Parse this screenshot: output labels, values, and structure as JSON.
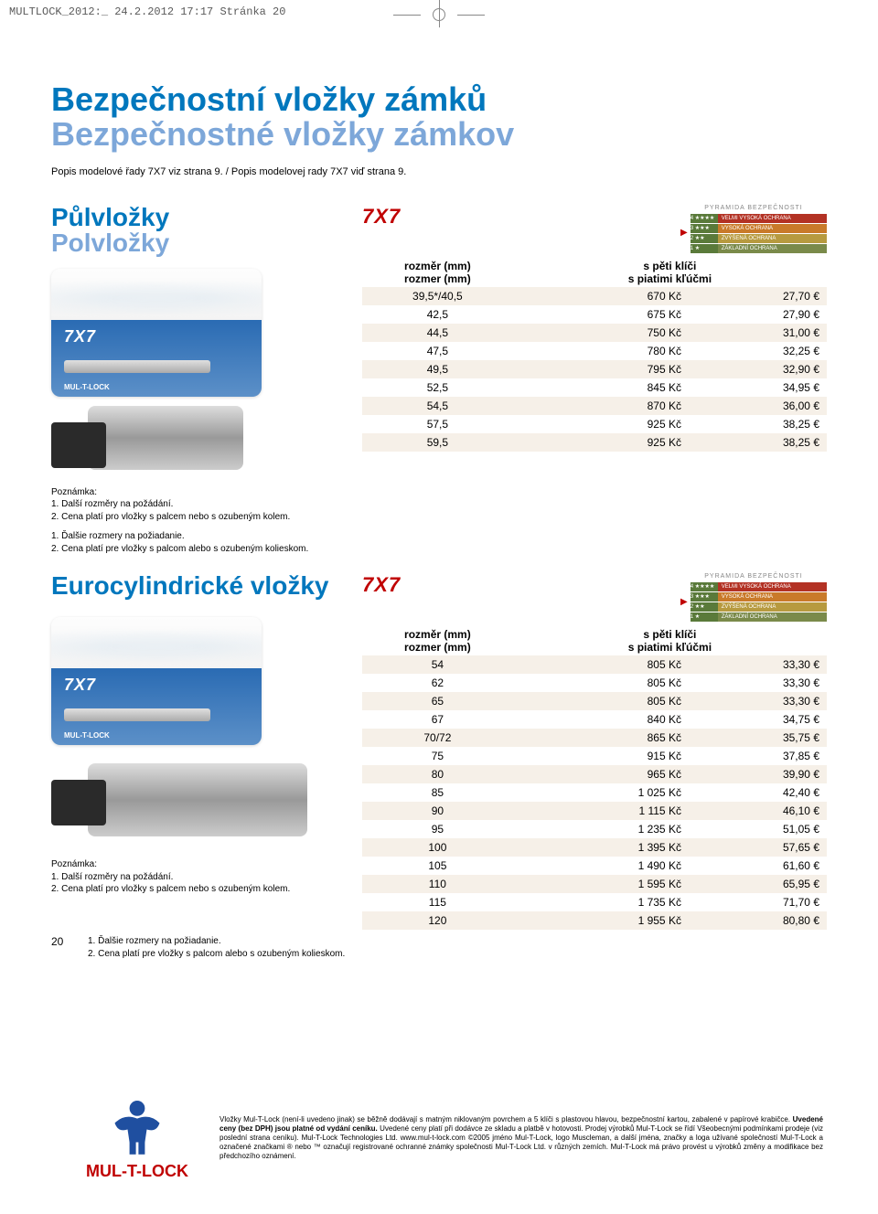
{
  "print_header": "MULTLOCK_2012:_  24.2.2012  17:17  Stránka 20",
  "title_cz": "Bezpečnostní vložky zámků",
  "title_sk": "Bezpečnostné vložky zámkov",
  "subtitle": "Popis modelové řady 7X7 viz strana 9. / Popis modelovej rady 7X7 viď strana 9.",
  "brand": "7X7",
  "card_brand_small": "MUL-T-LOCK",
  "pyramid": {
    "title": "PYRAMIDA BEZPEČNOSTI",
    "rows": [
      {
        "stars": "4 ★★★★",
        "label": "VELMI VYSOKÁ OCHRANA",
        "bg": "#b33224"
      },
      {
        "stars": "3 ★★★",
        "label": "VYSOKÁ OCHRANA",
        "bg": "#c97a2a"
      },
      {
        "stars": "2 ★★",
        "label": "ZVÝŠENÁ OCHRANA",
        "bg": "#b79a3f"
      },
      {
        "stars": "1 ★",
        "label": "ZÁKLADNÍ OCHRANA",
        "bg": "#7a8a4a"
      }
    ]
  },
  "table_header_col1a": "rozměr (mm)",
  "table_header_col1b": "rozmer (mm)",
  "table_header_col2a": "s pěti klíči",
  "table_header_col2b": "s piatimi kľúčmi",
  "section1": {
    "title_cz": "Půlvložky",
    "title_sk": "Polvložky",
    "rows": [
      {
        "size": "39,5*/40,5",
        "kc": "670 Kč",
        "eur": "27,70 €"
      },
      {
        "size": "42,5",
        "kc": "675 Kč",
        "eur": "27,90 €"
      },
      {
        "size": "44,5",
        "kc": "750 Kč",
        "eur": "31,00 €"
      },
      {
        "size": "47,5",
        "kc": "780 Kč",
        "eur": "32,25 €"
      },
      {
        "size": "49,5",
        "kc": "795 Kč",
        "eur": "32,90 €"
      },
      {
        "size": "52,5",
        "kc": "845 Kč",
        "eur": "34,95 €"
      },
      {
        "size": "54,5",
        "kc": "870 Kč",
        "eur": "36,00 €"
      },
      {
        "size": "57,5",
        "kc": "925 Kč",
        "eur": "38,25 €"
      },
      {
        "size": "59,5",
        "kc": "925 Kč",
        "eur": "38,25 €"
      }
    ]
  },
  "notes_a": {
    "heading": "Poznámka:",
    "l1": "1. Další rozměry na požádání.",
    "l2": "2. Cena platí pro vložky s palcem nebo s ozubeným kolem.",
    "l3": "1. Ďalšie rozmery na požiadanie.",
    "l4": "2. Cena platí pre vložky s palcom alebo s ozubeným kolieskom."
  },
  "section2": {
    "title": "Eurocylindrické vložky",
    "rows": [
      {
        "size": "54",
        "kc": "805 Kč",
        "eur": "33,30 €"
      },
      {
        "size": "62",
        "kc": "805 Kč",
        "eur": "33,30 €"
      },
      {
        "size": "65",
        "kc": "805 Kč",
        "eur": "33,30 €"
      },
      {
        "size": "67",
        "kc": "840 Kč",
        "eur": "34,75 €"
      },
      {
        "size": "70/72",
        "kc": "865 Kč",
        "eur": "35,75 €"
      },
      {
        "size": "75",
        "kc": "915 Kč",
        "eur": "37,85 €"
      },
      {
        "size": "80",
        "kc": "965 Kč",
        "eur": "39,90 €"
      },
      {
        "size": "85",
        "kc": "1 025 Kč",
        "eur": "42,40 €"
      },
      {
        "size": "90",
        "kc": "1 115 Kč",
        "eur": "46,10 €"
      },
      {
        "size": "95",
        "kc": "1 235 Kč",
        "eur": "51,05 €"
      },
      {
        "size": "100",
        "kc": "1 395 Kč",
        "eur": "57,65 €"
      },
      {
        "size": "105",
        "kc": "1 490 Kč",
        "eur": "61,60 €"
      },
      {
        "size": "110",
        "kc": "1 595 Kč",
        "eur": "65,95 €"
      },
      {
        "size": "115",
        "kc": "1 735 Kč",
        "eur": "71,70 €"
      },
      {
        "size": "120",
        "kc": "1 955 Kč",
        "eur": "80,80 €"
      }
    ]
  },
  "page_number": "20",
  "footer_logo": "MUL-T-LOCK",
  "footer_text_pre": "Vložky Mul-T-Lock (není-li uvedeno jinak) se běžně dodávají s matným niklovaným povrchem a 5 klíči s plastovou hlavou, bezpečnostní kartou, zabalené v papírové krabičce. ",
  "footer_text_bold": "Uvedené ceny (bez DPH) jsou platné od vydání ceníku.",
  "footer_text_post": " Uvedené ceny platí při dodávce ze skladu a platbě v hotovosti. Prodej výrobků Mul-T-Lock se řídí Všeobecnými podmínkami prodeje (viz poslední strana ceníku). Mul-T-Lock Technologies Ltd. www.mul-t-lock.com ©2005 jméno Mul-T-Lock, logo Muscleman, a další jména, značky a loga užívané společností Mul-T-Lock a označené značkami ® nebo ™ označují registrované ochranné známky společnosti Mul-T-Lock Ltd. v různých zemích. Mul-T-Lock má právo provést u výrobků změny a modifikace bez předchozího oznámení.",
  "colors": {
    "primary": "#0077bd",
    "secondary": "#7da7d9",
    "brand_red": "#c00000",
    "stripe": "#f6f0e8"
  },
  "fontsizes": {
    "h1": 36,
    "h2": 28,
    "body": 12,
    "notes": 10,
    "footer": 8
  }
}
